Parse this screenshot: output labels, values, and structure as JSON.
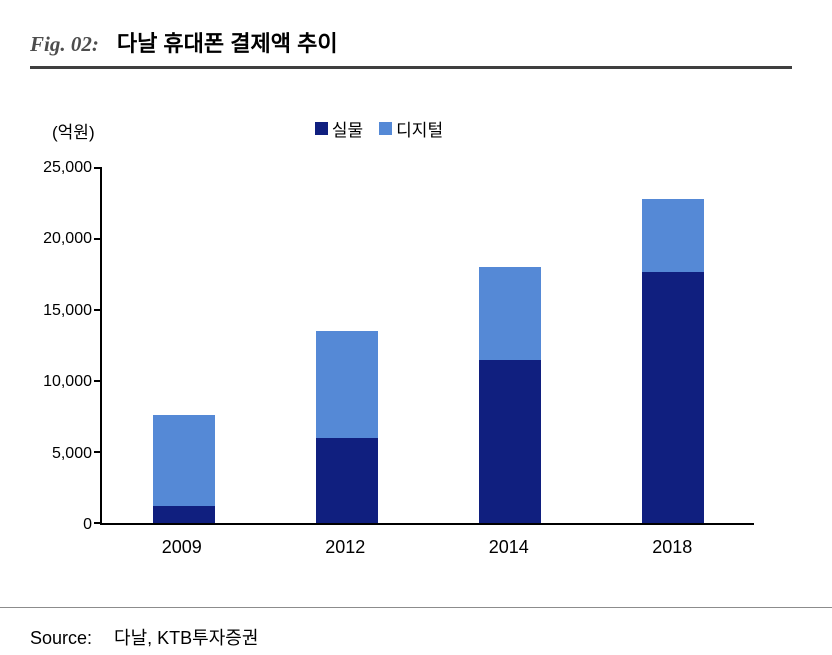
{
  "header": {
    "fig_label": "Fig. 02:",
    "title": "다날 휴대폰 결제액 추이"
  },
  "chart_data": {
    "type": "bar",
    "stacked": true,
    "title": "다날 휴대폰 결제액 추이",
    "unit_label": "(억원)",
    "categories": [
      "2009",
      "2012",
      "2014",
      "2018"
    ],
    "series": [
      {
        "name": "실물",
        "color": "#101f7f",
        "values": [
          1200,
          6000,
          11500,
          17700
        ]
      },
      {
        "name": "디지털",
        "color": "#5589d6",
        "values": [
          6400,
          7500,
          6500,
          5100
        ]
      }
    ],
    "totals": [
      7600,
      13500,
      18000,
      22800
    ],
    "ylim": [
      0,
      25000
    ],
    "ytick_interval": 5000,
    "ytick_labels": [
      "0",
      "5,000",
      "10,000",
      "15,000",
      "20,000",
      "25,000"
    ],
    "legend_position": "top-center",
    "grid": false
  },
  "footer": {
    "source_label": "Source:",
    "source_text": "다날, KTB투자증권"
  },
  "colors": {
    "physical_bar": "#101f7f",
    "digital_bar": "#5589d6",
    "header_rule": "#3f3f3f",
    "footer_rule": "#8c8c8c"
  }
}
